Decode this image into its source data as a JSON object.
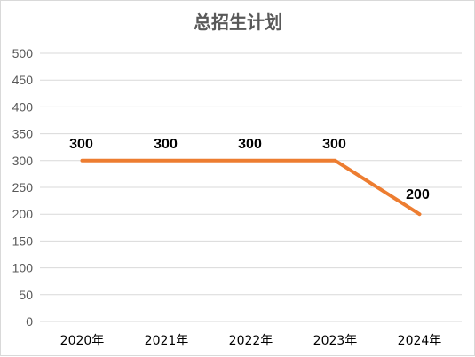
{
  "chart_data": {
    "type": "line",
    "title": "总招生计划",
    "categories": [
      "2020年",
      "2021年",
      "2022年",
      "2023年",
      "2024年"
    ],
    "series": [
      {
        "values": [
          300,
          300,
          300,
          300,
          200
        ],
        "data_labels": [
          "300",
          "300",
          "300",
          "300",
          "200"
        ]
      }
    ],
    "ylim": [
      0,
      500
    ],
    "yticks": [
      "0",
      "50",
      "100",
      "150",
      "200",
      "250",
      "300",
      "350",
      "400",
      "450",
      "500"
    ],
    "xlabel": "",
    "ylabel": "",
    "grid": true,
    "legend": "none",
    "colors": {
      "line": "#ed7d31",
      "grid": "#d9d9d9",
      "text": "#595959",
      "title": "#595959",
      "label": "#000000"
    }
  }
}
